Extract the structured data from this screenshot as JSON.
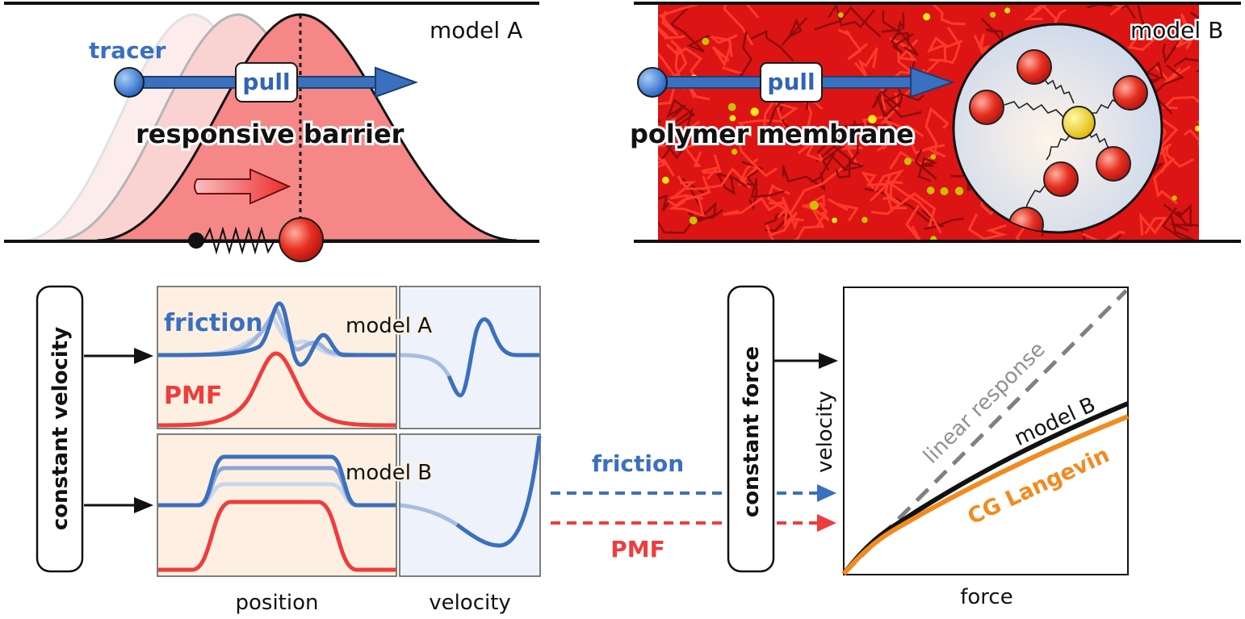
{
  "panel_a": {
    "label": "model A",
    "tracer": "tracer",
    "pull": "pull",
    "barrier": "responsive barrier"
  },
  "panel_b": {
    "label": "model B",
    "pull": "pull",
    "membrane": "polymer membrane"
  },
  "left_scheme": {
    "protocol": "constant velocity",
    "friction": "friction",
    "pmf": "PMF",
    "model_a": "model A",
    "model_b": "model B",
    "xlabel_position": "position",
    "xlabel_velocity": "velocity"
  },
  "middle": {
    "friction": "friction",
    "pmf": "PMF"
  },
  "right_scheme": {
    "protocol": "constant force",
    "xlabel": "force",
    "ylabel": "velocity",
    "linear_response": "linear response",
    "model_b": "model B",
    "cg_langevin": "CG Langevin"
  },
  "colors": {
    "blue": "#3a70bd",
    "red": "#ee3d3d",
    "orange": "#f28a1e",
    "grey": "#808080",
    "barrier_fill": "#f58787",
    "panel_pos_bg": "#fdf0e2",
    "panel_vel_bg": "#eef2fb"
  }
}
